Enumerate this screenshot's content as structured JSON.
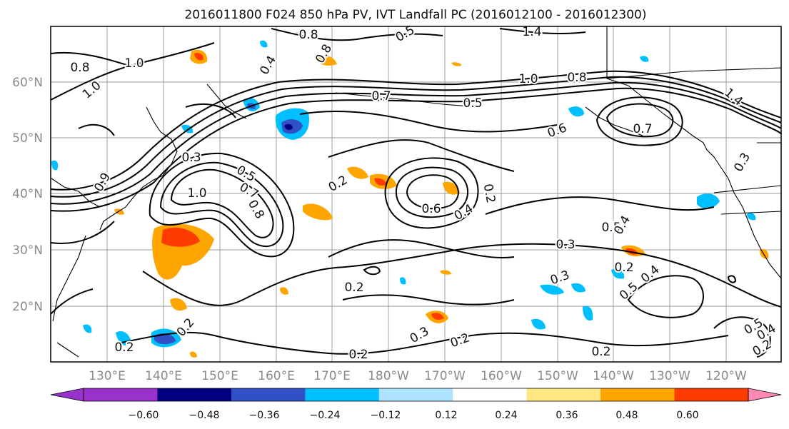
{
  "title": "2016011800 F024 850 hPa PV, IVT Landfall PC (2016012100 - 2016012300)",
  "lon_ticks": [
    "130°E",
    "140°E",
    "150°E",
    "160°E",
    "170°E",
    "180°W",
    "170°W",
    "160°W",
    "150°W",
    "140°W",
    "130°W",
    "120°W"
  ],
  "lat_ticks": [
    "60°N",
    "50°N",
    "40°N",
    "30°N",
    "20°N"
  ],
  "contour_labels": [
    "0.8",
    "1.0",
    "1.0",
    "0.8",
    "0.5",
    "1.4",
    "0.4",
    "0.8",
    "1.0",
    "0.8",
    "0.7",
    "0.5",
    "0.6",
    "0.7",
    "1.4",
    "0.3",
    "0.3",
    "0.5",
    "0.7",
    "1.0",
    "0.8",
    "0.9",
    "0.2",
    "0.6",
    "0.4",
    "0.2",
    "0.3",
    "0.5",
    "0.4",
    "0.3",
    "0.2",
    "0.5",
    "0.4",
    "0.2",
    "0.3",
    "0.2",
    "0.2",
    "0.2",
    "0.2",
    "0.2",
    "0.5",
    "0.4",
    "0.2"
  ],
  "colorbar": {
    "ticks": [
      "−0.60",
      "−0.48",
      "−0.36",
      "−0.24",
      "−0.12",
      "0.12",
      "0.24",
      "0.36",
      "0.48",
      "0.60"
    ],
    "colors": [
      "#9932cc",
      "#000080",
      "#3050c8",
      "#00bfff",
      "#aee3ff",
      "#ffffff",
      "#ffe680",
      "#ffa500",
      "#ff3c00",
      "#b22222",
      "#ff88b4"
    ]
  },
  "colors": {
    "frame": "#000000",
    "grid": "#999999",
    "contour": "#000000"
  }
}
